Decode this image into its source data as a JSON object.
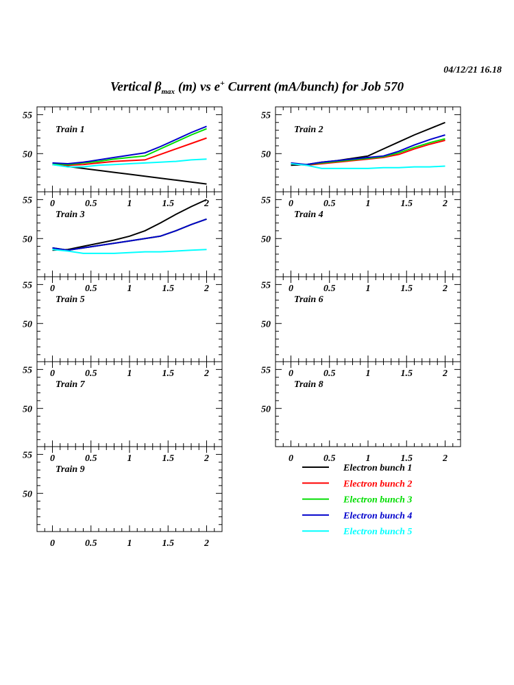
{
  "header": {
    "timestamp": "04/12/21   16.18"
  },
  "title": {
    "prefix": "Vertical ",
    "beta": "β",
    "sub": "max",
    "mid": " (m) vs e",
    "sup": "+",
    "suffix": " Current (mA/bunch) for Job 570"
  },
  "chart_data": {
    "type": "line",
    "xlim": [
      -0.2,
      2.2
    ],
    "ylim": [
      45.1,
      56.0
    ],
    "xticks": [
      "0",
      "0.5",
      "1",
      "1.5",
      "2"
    ],
    "xtick_values": [
      0,
      0.5,
      1,
      1.5,
      2
    ],
    "yticks": [
      "55",
      "50"
    ],
    "ytick_values": [
      55,
      50
    ],
    "x": [
      0,
      0.2,
      0.4,
      0.6,
      0.8,
      1.0,
      1.2,
      1.4,
      1.6,
      1.8,
      2.0
    ],
    "legend": [
      {
        "name": "Electron bunch 1",
        "color": "#000000"
      },
      {
        "name": "Electron bunch 2",
        "color": "#ff0000"
      },
      {
        "name": "Electron bunch 3",
        "color": "#00dd00"
      },
      {
        "name": "Electron bunch 4",
        "color": "#0000cc"
      },
      {
        "name": "Electron bunch 5",
        "color": "#00ffff"
      }
    ],
    "panels": [
      {
        "label": "Train 1",
        "series": [
          [
            48.6,
            48.35,
            48.1,
            47.85,
            47.6,
            47.35,
            47.1,
            46.85,
            46.6,
            46.35,
            46.1
          ],
          [
            48.7,
            48.5,
            48.6,
            48.8,
            49.0,
            49.1,
            49.2,
            49.9,
            50.6,
            51.3,
            52.0
          ],
          [
            48.7,
            48.6,
            48.8,
            49.0,
            49.3,
            49.5,
            49.7,
            50.6,
            51.5,
            52.4,
            53.2
          ],
          [
            48.8,
            48.7,
            48.9,
            49.2,
            49.5,
            49.8,
            50.1,
            50.9,
            51.8,
            52.7,
            53.5
          ],
          [
            48.6,
            48.3,
            48.3,
            48.5,
            48.6,
            48.7,
            48.8,
            48.9,
            49.0,
            49.2,
            49.3
          ]
        ]
      },
      {
        "label": "Train 2",
        "series": [
          [
            48.5,
            48.6,
            48.9,
            49.1,
            49.4,
            49.7,
            50.6,
            51.5,
            52.4,
            53.2,
            54.0
          ],
          [
            48.7,
            48.5,
            48.7,
            48.9,
            49.1,
            49.3,
            49.5,
            49.9,
            50.6,
            51.2,
            51.7
          ],
          [
            48.7,
            48.6,
            48.8,
            49.0,
            49.2,
            49.4,
            49.6,
            50.1,
            50.8,
            51.4,
            51.9
          ],
          [
            48.8,
            48.6,
            48.9,
            49.1,
            49.3,
            49.5,
            49.7,
            50.3,
            51.1,
            51.8,
            52.4
          ],
          [
            48.7,
            48.5,
            48.1,
            48.1,
            48.1,
            48.1,
            48.2,
            48.2,
            48.3,
            48.3,
            48.4
          ]
        ]
      },
      {
        "label": "Train 3",
        "series": [
          [
            48.5,
            48.6,
            49.0,
            49.4,
            49.8,
            50.3,
            51.0,
            52.0,
            53.1,
            54.1,
            55.0
          ],
          [
            48.8,
            48.5,
            48.8,
            49.1,
            49.4,
            49.7,
            50.0,
            50.3,
            51.0,
            51.8,
            52.5
          ],
          [
            48.8,
            48.5,
            48.8,
            49.1,
            49.4,
            49.7,
            50.0,
            50.3,
            51.0,
            51.8,
            52.5
          ],
          [
            48.8,
            48.5,
            48.8,
            49.1,
            49.4,
            49.7,
            50.0,
            50.3,
            51.0,
            51.8,
            52.5
          ],
          [
            48.6,
            48.4,
            48.1,
            48.1,
            48.1,
            48.2,
            48.3,
            48.3,
            48.4,
            48.5,
            48.6
          ]
        ]
      },
      {
        "label": "Train 4",
        "series": []
      },
      {
        "label": "Train 5",
        "series": []
      },
      {
        "label": "Train 6",
        "series": []
      },
      {
        "label": "Train 7",
        "series": []
      },
      {
        "label": "Train 8",
        "series": []
      },
      {
        "label": "Train 9",
        "series": []
      }
    ]
  }
}
